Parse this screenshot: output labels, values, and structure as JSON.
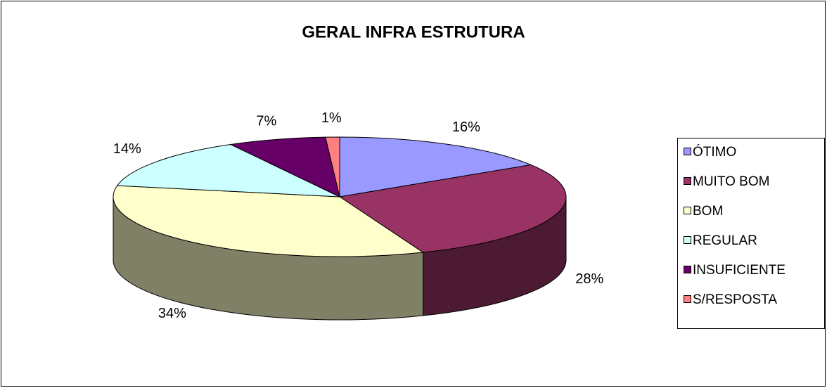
{
  "chart_data": {
    "type": "pie3d",
    "title": "GERAL INFRA ESTRUTURA",
    "categories": [
      "ÓTIMO",
      "MUITO BOM",
      "BOM",
      "REGULAR",
      "INSUFICIENTE",
      "S/RESPOSTA"
    ],
    "values": [
      16,
      28,
      34,
      14,
      7,
      1
    ],
    "value_labels": [
      "16%",
      "28%",
      "34%",
      "14%",
      "7%",
      "1%"
    ],
    "colors": [
      "#9999ff",
      "#993366",
      "#ffffcc",
      "#ccffff",
      "#660066",
      "#ff8080"
    ],
    "legend": "right"
  }
}
